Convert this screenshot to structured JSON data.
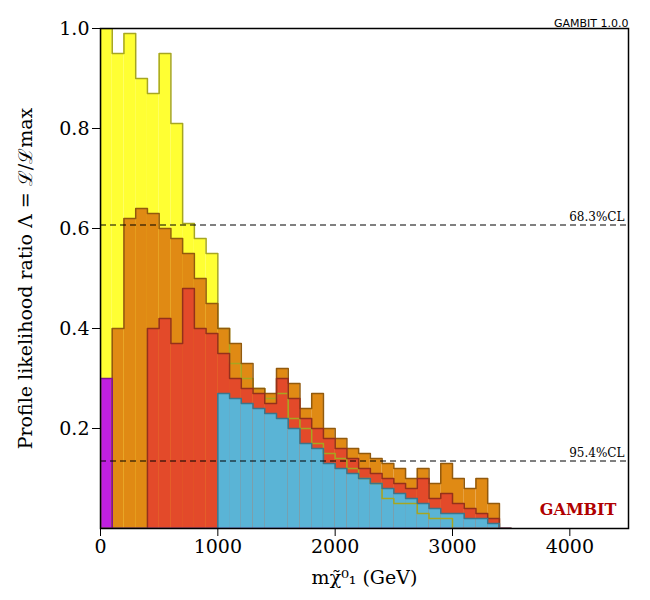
{
  "chart_data": {
    "type": "histogram",
    "x_label": "mχ̃⁰₁ (GeV)",
    "y_label": "Profile likelihood ratio Λ = ℒ/ℒmax",
    "xlim": [
      0,
      4500
    ],
    "ylim": [
      0,
      1
    ],
    "xticks": [
      0,
      1000,
      2000,
      3000,
      4000
    ],
    "yticks": [
      0.2,
      0.4,
      0.6,
      0.8,
      {
        "value": 1,
        "label": "1.0"
      }
    ],
    "watermark": "GAMBIT 1.0.0",
    "logo": "GAMBIT",
    "annotations": [
      {
        "text": "68.3%CL",
        "y": 0.607,
        "line_style": "dashed"
      },
      {
        "text": "95.4%CL",
        "y": 0.135,
        "line_style": "dashed"
      }
    ],
    "series": [
      {
        "color": "#ffff33",
        "bins": [
          0,
          100,
          200,
          300,
          400,
          500,
          600,
          700,
          800,
          900,
          1000,
          1100,
          1200,
          1300,
          1400,
          1500,
          1600,
          1700,
          1800,
          1900,
          2000,
          2100,
          2200,
          2300,
          2400,
          2500,
          2600,
          2700,
          2800,
          2900,
          3000,
          3100,
          3200,
          3300,
          3400,
          3500
        ],
        "values": [
          1.0,
          0.95,
          0.99,
          0.9,
          0.87,
          0.95,
          0.81,
          0.61,
          0.58,
          0.55,
          0.4,
          0.33,
          0.3,
          0.28,
          0.26,
          0.27,
          0.22,
          0.2,
          0.17,
          0.15,
          0.14,
          0.12,
          0.1,
          0.09,
          0.06,
          0.05,
          0.05,
          0.03,
          0.02,
          0.02,
          0,
          0,
          0,
          0,
          0
        ]
      },
      {
        "color": "#e08a14",
        "bins": [
          0,
          100,
          200,
          300,
          400,
          500,
          600,
          700,
          800,
          900,
          1000,
          1100,
          1200,
          1300,
          1400,
          1500,
          1600,
          1700,
          1800,
          1900,
          2000,
          2100,
          2200,
          2300,
          2400,
          2500,
          2600,
          2700,
          2800,
          2900,
          3000,
          3100,
          3200,
          3300,
          3400,
          3500
        ],
        "values": [
          0,
          0.4,
          0.62,
          0.64,
          0.63,
          0.6,
          0.58,
          0.55,
          0.5,
          0.45,
          0.4,
          0.37,
          0.33,
          0.28,
          0.27,
          0.32,
          0.29,
          0.24,
          0.27,
          0.2,
          0.18,
          0.16,
          0.15,
          0.14,
          0.13,
          0.12,
          0.1,
          0.12,
          0.09,
          0.13,
          0.1,
          0.08,
          0.1,
          0.05,
          0
        ]
      },
      {
        "color": "#e34a2a",
        "bins": [
          0,
          100,
          200,
          300,
          400,
          500,
          600,
          700,
          800,
          900,
          1000,
          1100,
          1200,
          1300,
          1400,
          1500,
          1600,
          1700,
          1800,
          1900,
          2000,
          2100,
          2200,
          2300,
          2400,
          2500,
          2600,
          2700,
          2800,
          2900,
          3000,
          3100,
          3200,
          3300,
          3400,
          3500
        ],
        "values": [
          0,
          0,
          0,
          0,
          0.4,
          0.42,
          0.37,
          0.48,
          0.4,
          0.39,
          0.35,
          0.3,
          0.28,
          0.27,
          0.25,
          0.3,
          0.26,
          0.22,
          0.2,
          0.18,
          0.16,
          0.14,
          0.12,
          0.11,
          0.1,
          0.09,
          0.08,
          0.1,
          0.06,
          0.07,
          0.05,
          0.04,
          0.03,
          0.02,
          0
        ]
      },
      {
        "color": "#5ab4d6",
        "bins": [
          0,
          100,
          200,
          300,
          400,
          500,
          600,
          700,
          800,
          900,
          1000,
          1100,
          1200,
          1300,
          1400,
          1500,
          1600,
          1700,
          1800,
          1900,
          2000,
          2100,
          2200,
          2300,
          2400,
          2500,
          2600,
          2700,
          2800,
          2900,
          3000,
          3100,
          3200,
          3300,
          3400,
          3500
        ],
        "values": [
          0,
          0,
          0,
          0,
          0,
          0,
          0,
          0,
          0,
          0,
          0.27,
          0.26,
          0.25,
          0.24,
          0.23,
          0.22,
          0.2,
          0.17,
          0.16,
          0.13,
          0.12,
          0.11,
          0.1,
          0.09,
          0.08,
          0.07,
          0.06,
          0.05,
          0.04,
          0.03,
          0.03,
          0.02,
          0.02,
          0.01,
          0
        ]
      },
      {
        "color": "#c020e0",
        "bins": [
          0,
          100,
          200,
          300,
          400,
          500,
          600,
          700,
          800,
          900,
          1000,
          1100,
          1200,
          1300,
          1400,
          1500,
          1600,
          1700,
          1800,
          1900,
          2000,
          2100,
          2200,
          2300,
          2400,
          2500,
          2600,
          2700,
          2800,
          2900,
          3000,
          3100,
          3200,
          3300,
          3400,
          3500
        ],
        "values": [
          0.3,
          0,
          0,
          0,
          0,
          0,
          0,
          0,
          0,
          0,
          0,
          0,
          0,
          0,
          0,
          0,
          0,
          0,
          0,
          0,
          0,
          0,
          0,
          0,
          0,
          0,
          0,
          0,
          0,
          0,
          0,
          0,
          0,
          0,
          0
        ]
      }
    ]
  }
}
